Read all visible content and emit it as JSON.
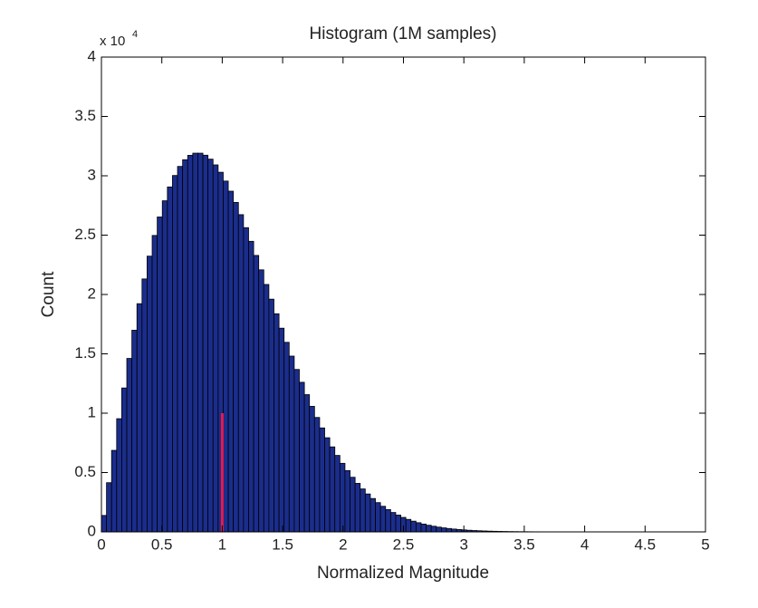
{
  "chart_data": {
    "type": "histogram",
    "title": "Histogram (1M samples)",
    "x_label": "Normalized Magnitude",
    "y_label": "Count",
    "y_multiplier": "x 10",
    "y_multiplier_exp": "4",
    "color": "#1b2d8c",
    "edge_color": "#000000",
    "bins": [
      0,
      0.042,
      0.084,
      0.126,
      0.168,
      0.21,
      0.252,
      0.294,
      0.336,
      0.378,
      0.42,
      0.462,
      0.504,
      0.546,
      0.588,
      0.63,
      0.672,
      0.714,
      0.756,
      0.798,
      0.84,
      0.882,
      0.924,
      0.966,
      1.008,
      1.05,
      1.092,
      1.134,
      1.176,
      1.218,
      1.26,
      1.302,
      1.344,
      1.386,
      1.428,
      1.47,
      1.512,
      1.554,
      1.596,
      1.638,
      1.68,
      1.722,
      1.764,
      1.806,
      1.848,
      1.89,
      1.932,
      1.974,
      2.016,
      2.058,
      2.1,
      2.142,
      2.184,
      2.226,
      2.268,
      2.31,
      2.352,
      2.394,
      2.436,
      2.478,
      2.52,
      2.562,
      2.604,
      2.646,
      2.688,
      2.73,
      2.772,
      2.814,
      2.856,
      2.898,
      2.94,
      2.982,
      3.024,
      3.066,
      3.108,
      3.15,
      3.192,
      3.234,
      3.276,
      3.318,
      3.36,
      3.402,
      3.444,
      3.486,
      3.528,
      3.57,
      3.612,
      3.654,
      3.696,
      3.738,
      3.78,
      3.822,
      3.864,
      3.906,
      3.948,
      3.99,
      4.032,
      4.074,
      4.116,
      4.158,
      4.2
    ],
    "values": [
      1385,
      4143,
      6867,
      9535,
      12124,
      14614,
      16987,
      19224,
      21309,
      23229,
      24973,
      26530,
      27894,
      29060,
      30025,
      30788,
      31354,
      31723,
      31905,
      31904,
      31733,
      31401,
      30917,
      30296,
      29554,
      28702,
      27754,
      26726,
      25630,
      24480,
      23291,
      22075,
      20844,
      19606,
      18377,
      17161,
      15970,
      14809,
      13684,
      12603,
      11562,
      10577,
      9640,
      8759,
      7932,
      7161,
      6442,
      5777,
      5164,
      4602,
      4087,
      3619,
      3195,
      2811,
      2466,
      2156,
      1879,
      1633,
      1415,
      1221,
      1052,
      903,
      773,
      659,
      561,
      476,
      402,
      339,
      285,
      239,
      200,
      166,
      138,
      113,
      95,
      78,
      63,
      52,
      43,
      35,
      28,
      23,
      18,
      15,
      12,
      9,
      8,
      6,
      5,
      4,
      3,
      2,
      2,
      1,
      1,
      1,
      0,
      0,
      0,
      1
    ],
    "marker_line": {
      "x": 1,
      "y": [
        0,
        10000
      ],
      "color": "#e8194f"
    },
    "xlim": [
      0,
      5
    ],
    "xticks": [
      0,
      0.5,
      1,
      1.5,
      2,
      2.5,
      3,
      3.5,
      4,
      4.5,
      5
    ],
    "ylim": [
      0,
      40000
    ],
    "yticks": [
      0,
      {
        "value": 5000,
        "label": "0.5"
      },
      {
        "value": 10000,
        "label": "1"
      },
      {
        "value": 15000,
        "label": "1.5"
      },
      {
        "value": 20000,
        "label": "2"
      },
      {
        "value": 25000,
        "label": "2.5"
      },
      {
        "value": 30000,
        "label": "3"
      },
      {
        "value": 35000,
        "label": "3.5"
      },
      {
        "value": 40000,
        "label": "4"
      }
    ]
  }
}
